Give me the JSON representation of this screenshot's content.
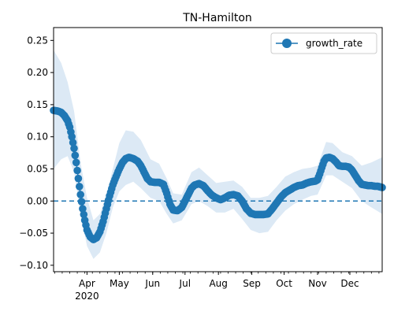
{
  "chart_data": {
    "type": "line",
    "title": "TN-Hamilton",
    "xlabel": "",
    "ylabel": "",
    "x_range": [
      "2020-03-01",
      "2020-12-31"
    ],
    "ylim": [
      -0.11,
      0.27
    ],
    "y_ticks": [
      -0.1,
      -0.05,
      0.0,
      0.05,
      0.1,
      0.15,
      0.2,
      0.25
    ],
    "y_tick_labels": [
      "−0.10",
      "−0.05",
      "0.00",
      "0.05",
      "0.10",
      "0.15",
      "0.20",
      "0.25"
    ],
    "x_ticks": [
      {
        "date": "2020-04-01",
        "label": "Apr",
        "sublabel": "2020"
      },
      {
        "date": "2020-05-01",
        "label": "May"
      },
      {
        "date": "2020-06-01",
        "label": "Jun"
      },
      {
        "date": "2020-07-01",
        "label": "Jul"
      },
      {
        "date": "2020-08-01",
        "label": "Aug"
      },
      {
        "date": "2020-09-01",
        "label": "Sep"
      },
      {
        "date": "2020-10-01",
        "label": "Oct"
      },
      {
        "date": "2020-11-01",
        "label": "Nov"
      },
      {
        "date": "2020-12-01",
        "label": "Dec"
      }
    ],
    "reference_line": {
      "y": 0.0,
      "style": "dashed"
    },
    "legend": {
      "position": "top-right",
      "entries": [
        "growth_rate"
      ]
    },
    "grid": false,
    "colors": {
      "series": "#1f77b4",
      "band": "#dce9f5"
    },
    "series": [
      {
        "name": "growth_rate",
        "points": [
          [
            "2020-03-01",
            0.141
          ],
          [
            "2020-03-05",
            0.14
          ],
          [
            "2020-03-08",
            0.138
          ],
          [
            "2020-03-11",
            0.133
          ],
          [
            "2020-03-14",
            0.125
          ],
          [
            "2020-03-16",
            0.115
          ],
          [
            "2020-03-18",
            0.1
          ],
          [
            "2020-03-20",
            0.082
          ],
          [
            "2020-03-22",
            0.06
          ],
          [
            "2020-03-24",
            0.035
          ],
          [
            "2020-03-26",
            0.01
          ],
          [
            "2020-03-28",
            -0.012
          ],
          [
            "2020-03-30",
            -0.03
          ],
          [
            "2020-04-01",
            -0.045
          ],
          [
            "2020-04-04",
            -0.056
          ],
          [
            "2020-04-07",
            -0.06
          ],
          [
            "2020-04-10",
            -0.057
          ],
          [
            "2020-04-13",
            -0.048
          ],
          [
            "2020-04-16",
            -0.032
          ],
          [
            "2020-04-19",
            -0.012
          ],
          [
            "2020-04-22",
            0.008
          ],
          [
            "2020-04-25",
            0.025
          ],
          [
            "2020-04-28",
            0.038
          ],
          [
            "2020-05-01",
            0.05
          ],
          [
            "2020-05-04",
            0.06
          ],
          [
            "2020-05-07",
            0.066
          ],
          [
            "2020-05-10",
            0.068
          ],
          [
            "2020-05-14",
            0.066
          ],
          [
            "2020-05-18",
            0.062
          ],
          [
            "2020-05-21",
            0.055
          ],
          [
            "2020-05-24",
            0.045
          ],
          [
            "2020-05-27",
            0.035
          ],
          [
            "2020-05-30",
            0.03
          ],
          [
            "2020-06-03",
            0.029
          ],
          [
            "2020-06-07",
            0.029
          ],
          [
            "2020-06-11",
            0.026
          ],
          [
            "2020-06-14",
            0.012
          ],
          [
            "2020-06-17",
            -0.005
          ],
          [
            "2020-06-20",
            -0.014
          ],
          [
            "2020-06-24",
            -0.015
          ],
          [
            "2020-06-28",
            -0.01
          ],
          [
            "2020-07-01",
            0.0
          ],
          [
            "2020-07-04",
            0.01
          ],
          [
            "2020-07-07",
            0.02
          ],
          [
            "2020-07-10",
            0.025
          ],
          [
            "2020-07-14",
            0.027
          ],
          [
            "2020-07-18",
            0.024
          ],
          [
            "2020-07-22",
            0.016
          ],
          [
            "2020-07-26",
            0.009
          ],
          [
            "2020-07-30",
            0.005
          ],
          [
            "2020-08-03",
            0.002
          ],
          [
            "2020-08-07",
            0.005
          ],
          [
            "2020-08-11",
            0.009
          ],
          [
            "2020-08-15",
            0.01
          ],
          [
            "2020-08-19",
            0.008
          ],
          [
            "2020-08-23",
            0.0
          ],
          [
            "2020-08-27",
            -0.012
          ],
          [
            "2020-08-31",
            -0.019
          ],
          [
            "2020-09-04",
            -0.021
          ],
          [
            "2020-09-08",
            -0.021
          ],
          [
            "2020-09-12",
            -0.021
          ],
          [
            "2020-09-16",
            -0.02
          ],
          [
            "2020-09-20",
            -0.012
          ],
          [
            "2020-09-24",
            -0.003
          ],
          [
            "2020-09-28",
            0.006
          ],
          [
            "2020-10-02",
            0.013
          ],
          [
            "2020-10-06",
            0.017
          ],
          [
            "2020-10-10",
            0.021
          ],
          [
            "2020-10-14",
            0.024
          ],
          [
            "2020-10-18",
            0.025
          ],
          [
            "2020-10-22",
            0.028
          ],
          [
            "2020-10-26",
            0.03
          ],
          [
            "2020-10-30",
            0.031
          ],
          [
            "2020-11-01",
            0.033
          ],
          [
            "2020-11-03",
            0.042
          ],
          [
            "2020-11-05",
            0.052
          ],
          [
            "2020-11-07",
            0.062
          ],
          [
            "2020-11-09",
            0.067
          ],
          [
            "2020-11-12",
            0.068
          ],
          [
            "2020-11-15",
            0.066
          ],
          [
            "2020-11-18",
            0.061
          ],
          [
            "2020-11-21",
            0.055
          ],
          [
            "2020-11-24",
            0.054
          ],
          [
            "2020-11-27",
            0.054
          ],
          [
            "2020-11-30",
            0.053
          ],
          [
            "2020-12-03",
            0.048
          ],
          [
            "2020-12-06",
            0.04
          ],
          [
            "2020-12-09",
            0.032
          ],
          [
            "2020-12-12",
            0.026
          ],
          [
            "2020-12-15",
            0.025
          ],
          [
            "2020-12-18",
            0.024
          ],
          [
            "2020-12-21",
            0.024
          ],
          [
            "2020-12-24",
            0.023
          ],
          [
            "2020-12-27",
            0.023
          ],
          [
            "2020-12-31",
            0.021
          ]
        ],
        "band": [
          [
            "2020-03-01",
            0.05,
            0.235
          ],
          [
            "2020-03-08",
            0.065,
            0.215
          ],
          [
            "2020-03-14",
            0.07,
            0.185
          ],
          [
            "2020-03-20",
            0.045,
            0.14
          ],
          [
            "2020-03-26",
            -0.02,
            0.06
          ],
          [
            "2020-04-01",
            -0.07,
            0.005
          ],
          [
            "2020-04-07",
            -0.09,
            -0.03
          ],
          [
            "2020-04-13",
            -0.08,
            -0.02
          ],
          [
            "2020-04-19",
            -0.05,
            0.01
          ],
          [
            "2020-04-25",
            -0.01,
            0.05
          ],
          [
            "2020-05-01",
            0.015,
            0.09
          ],
          [
            "2020-05-07",
            0.025,
            0.11
          ],
          [
            "2020-05-14",
            0.03,
            0.108
          ],
          [
            "2020-05-21",
            0.02,
            0.095
          ],
          [
            "2020-05-30",
            0.005,
            0.065
          ],
          [
            "2020-06-07",
            0.0,
            0.058
          ],
          [
            "2020-06-14",
            -0.02,
            0.035
          ],
          [
            "2020-06-20",
            -0.035,
            0.012
          ],
          [
            "2020-06-28",
            -0.03,
            0.01
          ],
          [
            "2020-07-07",
            -0.005,
            0.045
          ],
          [
            "2020-07-14",
            0.0,
            0.052
          ],
          [
            "2020-07-22",
            -0.008,
            0.04
          ],
          [
            "2020-07-30",
            -0.018,
            0.028
          ],
          [
            "2020-08-07",
            -0.018,
            0.03
          ],
          [
            "2020-08-15",
            -0.012,
            0.032
          ],
          [
            "2020-08-23",
            -0.028,
            0.022
          ],
          [
            "2020-08-31",
            -0.045,
            0.005
          ],
          [
            "2020-09-08",
            -0.05,
            0.005
          ],
          [
            "2020-09-16",
            -0.048,
            0.008
          ],
          [
            "2020-09-24",
            -0.03,
            0.022
          ],
          [
            "2020-10-02",
            -0.015,
            0.038
          ],
          [
            "2020-10-10",
            -0.005,
            0.045
          ],
          [
            "2020-10-18",
            0.002,
            0.05
          ],
          [
            "2020-10-26",
            0.008,
            0.052
          ],
          [
            "2020-11-01",
            0.01,
            0.055
          ],
          [
            "2020-11-09",
            0.04,
            0.092
          ],
          [
            "2020-11-15",
            0.04,
            0.09
          ],
          [
            "2020-11-24",
            0.03,
            0.076
          ],
          [
            "2020-12-03",
            0.02,
            0.07
          ],
          [
            "2020-12-12",
            0.0,
            0.055
          ],
          [
            "2020-12-21",
            -0.01,
            0.06
          ],
          [
            "2020-12-31",
            -0.02,
            0.068
          ]
        ]
      }
    ]
  }
}
